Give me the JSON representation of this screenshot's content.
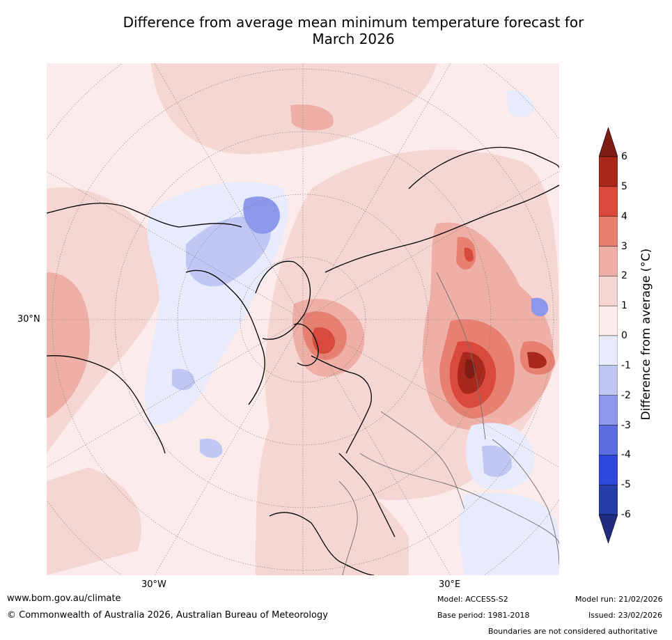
{
  "title_line1": "Difference from average mean minimum temperature forecast for",
  "title_line2": "March 2026",
  "map": {
    "projection": "polar stereographic (north)",
    "lat_label": "30°N",
    "lon_labels": [
      "30°W",
      "30°E"
    ]
  },
  "colorbar": {
    "label": "Difference from average (°C)",
    "ticks": [
      "6",
      "5",
      "4",
      "3",
      "2",
      "1",
      "0",
      "-1",
      "-2",
      "-3",
      "-4",
      "-5",
      "-6"
    ],
    "colors_warm": [
      "#7f1d14",
      "#a8281c",
      "#d94a3c",
      "#e88072",
      "#eeafa6",
      "#f6d6d2",
      "#fbeceb"
    ],
    "colors_cool": [
      "#e8ebfb",
      "#c0c7f3",
      "#8d98ea",
      "#5b6be0",
      "#2f47dc",
      "#253ea8",
      "#1f2c80"
    ]
  },
  "footer": {
    "website": "www.bom.gov.au/climate",
    "copyright": "© Commonwealth of Australia 2026, Australian Bureau of Meteorology",
    "model": "Model: ACCESS-S2",
    "base_period": "Base period: 1981-2018",
    "model_run": "Model run: 21/02/2026",
    "issued": "Issued: 23/02/2026",
    "disclaimer": "Boundaries are not considered authoritative"
  }
}
